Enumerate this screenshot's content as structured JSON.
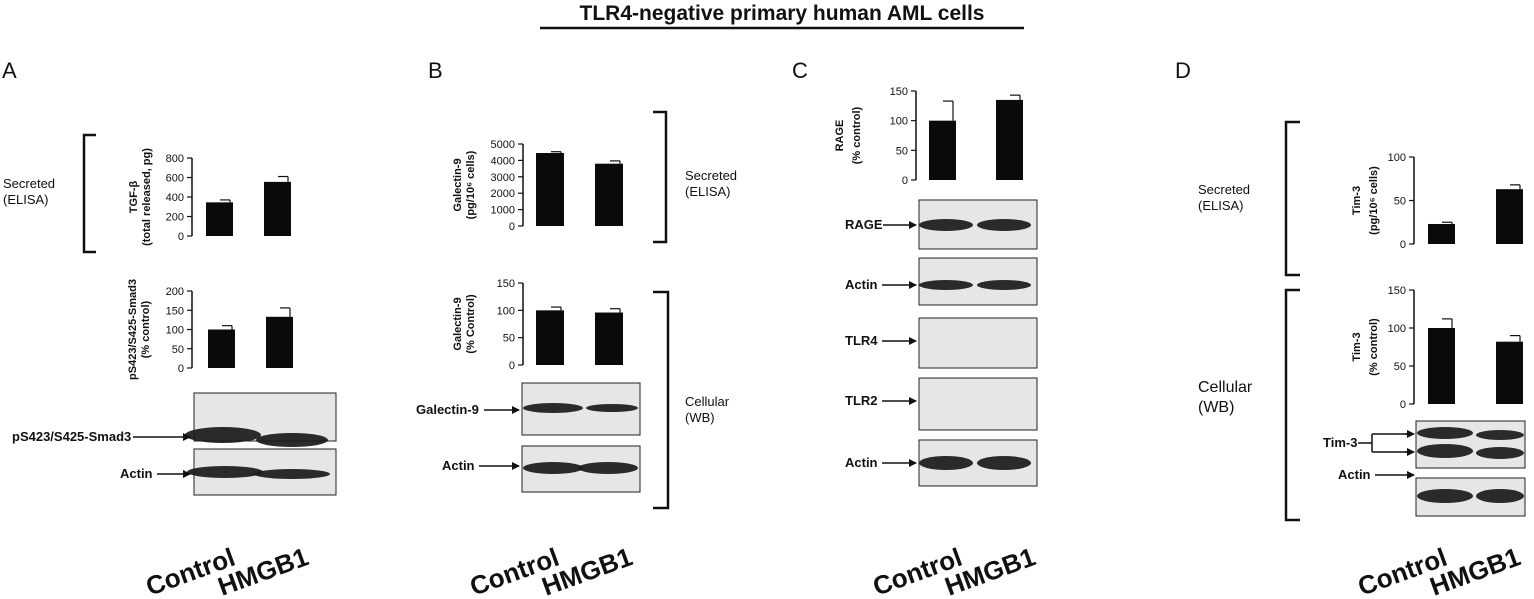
{
  "title": "TLR4-negative primary  human AML cells",
  "x_labels": [
    "Control",
    "HMGB1"
  ],
  "panels": {
    "A": {
      "letter": "A",
      "section_labels": {
        "secreted": [
          "Secreted",
          "(ELISA)"
        ]
      },
      "blots": [
        {
          "label": "pS423/S425-Smad3"
        },
        {
          "label": "Actin"
        }
      ]
    },
    "B": {
      "letter": "B",
      "section_labels": {
        "secreted": [
          "Secreted",
          "(ELISA)"
        ],
        "cellular": [
          "Cellular",
          "(WB)"
        ]
      },
      "blots": [
        {
          "label": "Galectin-9"
        },
        {
          "label": "Actin"
        }
      ]
    },
    "C": {
      "letter": "C",
      "blots": [
        {
          "label": "RAGE"
        },
        {
          "label": "Actin"
        },
        {
          "label": "TLR4"
        },
        {
          "label": "TLR2"
        },
        {
          "label": "Actin"
        }
      ]
    },
    "D": {
      "letter": "D",
      "section_labels": {
        "secreted": [
          "Secreted",
          "(ELISA)"
        ],
        "cellular": [
          "Cellular",
          "(WB)"
        ]
      },
      "blots": [
        {
          "label": "Tim-3"
        },
        {
          "label": "Actin"
        }
      ]
    }
  },
  "colors": {
    "bar": "#0a0a0a",
    "blot_bg": "#e6e6e6",
    "band": "#1a1a1a"
  },
  "chart_data": [
    {
      "id": "A1",
      "type": "bar",
      "panel": "A",
      "categories": [
        "Control",
        "HMGB1"
      ],
      "values": [
        345,
        555
      ],
      "errors": [
        25,
        55
      ],
      "ylabel": [
        "TGF-β",
        "(total released, pg)"
      ],
      "ylim": [
        0,
        800
      ],
      "yticks": [
        0,
        200,
        400,
        600,
        800
      ]
    },
    {
      "id": "A2",
      "type": "bar",
      "panel": "A",
      "categories": [
        "Control",
        "HMGB1"
      ],
      "values": [
        100,
        133
      ],
      "errors": [
        10,
        23
      ],
      "ylabel": [
        "pS423/S425-Smad3",
        "(% control)"
      ],
      "ylim": [
        0,
        200
      ],
      "yticks": [
        0,
        50,
        100,
        150,
        200
      ]
    },
    {
      "id": "B1",
      "type": "bar",
      "panel": "B",
      "categories": [
        "Control",
        "HMGB1"
      ],
      "values": [
        4450,
        3800
      ],
      "errors": [
        80,
        170
      ],
      "ylabel": [
        "Galectin-9",
        "(pg/10⁶ cells)"
      ],
      "ylim": [
        0,
        5000
      ],
      "yticks": [
        0,
        1000,
        2000,
        3000,
        4000,
        5000
      ]
    },
    {
      "id": "B2",
      "type": "bar",
      "panel": "B",
      "categories": [
        "Control",
        "HMGB1"
      ],
      "values": [
        100,
        96
      ],
      "errors": [
        6,
        7
      ],
      "ylabel": [
        "Galectin-9",
        "(% Control)"
      ],
      "ylim": [
        0,
        150
      ],
      "yticks": [
        0,
        50,
        100,
        150
      ]
    },
    {
      "id": "C1",
      "type": "bar",
      "panel": "C",
      "categories": [
        "Control",
        "HMGB1"
      ],
      "values": [
        100,
        135
      ],
      "errors": [
        33,
        8
      ],
      "ylabel": [
        "RAGE",
        "(% control)"
      ],
      "ylim": [
        0,
        150
      ],
      "yticks": [
        0,
        50,
        100,
        150
      ]
    },
    {
      "id": "D1",
      "type": "bar",
      "panel": "D",
      "categories": [
        "Control",
        "HMGB1"
      ],
      "values": [
        23,
        63
      ],
      "errors": [
        2,
        5
      ],
      "ylabel": [
        "Tim-3",
        "(pg/10⁶ cells)"
      ],
      "ylim": [
        0,
        100
      ],
      "yticks": [
        0,
        50,
        100
      ]
    },
    {
      "id": "D2",
      "type": "bar",
      "panel": "D",
      "categories": [
        "Control",
        "HMGB1"
      ],
      "values": [
        100,
        82
      ],
      "errors": [
        12,
        8
      ],
      "ylabel": [
        "Tim-3",
        "(% control)"
      ],
      "ylim": [
        0,
        150
      ],
      "yticks": [
        0,
        50,
        100,
        150
      ]
    }
  ]
}
